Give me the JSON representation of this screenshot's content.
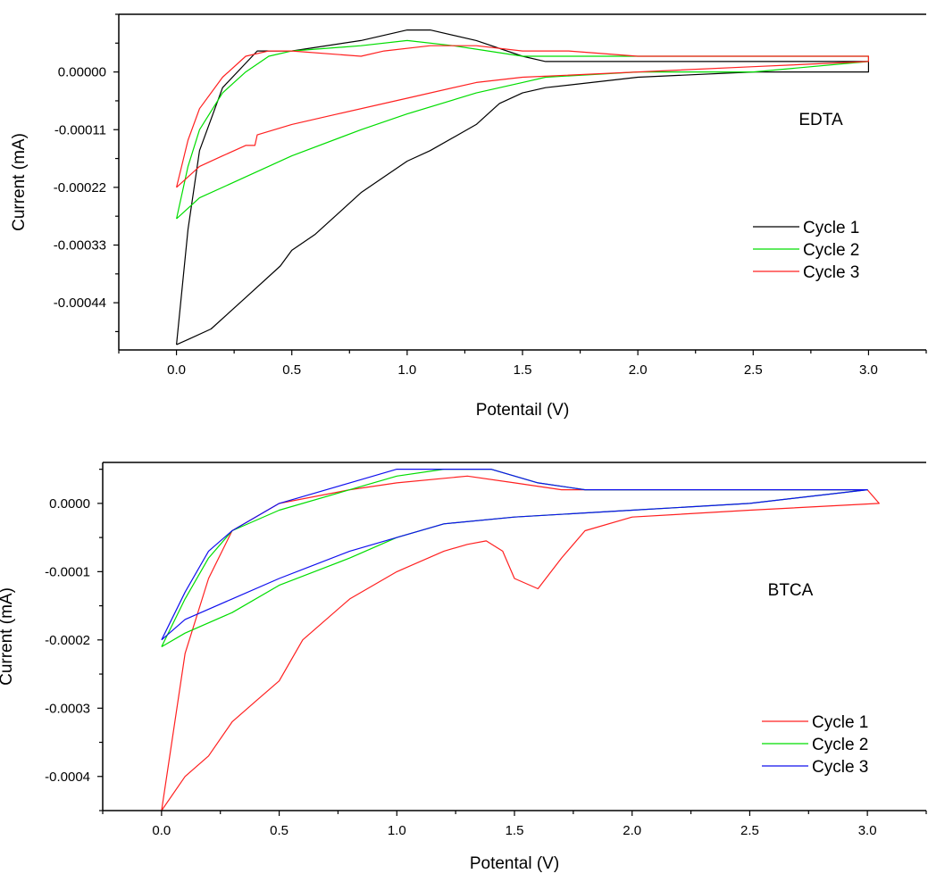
{
  "chart_data": [
    {
      "type": "line",
      "title": "",
      "annotation": "EDTA",
      "xlabel": "Potentail (V)",
      "ylabel": "Current (mA)",
      "xlim": [
        -0.25,
        3.25
      ],
      "ylim": [
        -0.00053,
        0.00011
      ],
      "xticks": [
        0.0,
        0.5,
        1.0,
        1.5,
        2.0,
        2.5,
        3.0
      ],
      "xtick_labels": [
        "0.0",
        "0.5",
        "1.0",
        "1.5",
        "2.0",
        "2.5",
        "3.0"
      ],
      "yticks": [
        0.0,
        -0.00011,
        -0.00022,
        -0.00033,
        -0.00044
      ],
      "ytick_labels": [
        "0.00000",
        "-0.00011",
        "-0.00022",
        "-0.00033",
        "-0.00044"
      ],
      "legend_position": "lower-right",
      "series": [
        {
          "name": "Cycle 1",
          "color": "#000000",
          "points": [
            [
              0.0,
              -0.00052
            ],
            [
              0.05,
              -0.0003
            ],
            [
              0.1,
              -0.00015
            ],
            [
              0.2,
              -3e-05
            ],
            [
              0.35,
              4e-05
            ],
            [
              0.5,
              4e-05
            ],
            [
              0.8,
              6e-05
            ],
            [
              1.0,
              8e-05
            ],
            [
              1.1,
              8e-05
            ],
            [
              1.3,
              6e-05
            ],
            [
              1.5,
              3e-05
            ],
            [
              1.6,
              2e-05
            ],
            [
              2.0,
              2e-05
            ],
            [
              2.5,
              2e-05
            ],
            [
              3.0,
              2e-05
            ],
            [
              3.0,
              0.0
            ],
            [
              2.5,
              0.0
            ],
            [
              2.0,
              -1e-05
            ],
            [
              1.6,
              -3e-05
            ],
            [
              1.5,
              -4e-05
            ],
            [
              1.4,
              -6e-05
            ],
            [
              1.3,
              -0.0001
            ],
            [
              1.1,
              -0.00015
            ],
            [
              1.0,
              -0.00017
            ],
            [
              0.9,
              -0.0002
            ],
            [
              0.8,
              -0.00023
            ],
            [
              0.7,
              -0.00027
            ],
            [
              0.6,
              -0.00031
            ],
            [
              0.5,
              -0.00034
            ],
            [
              0.45,
              -0.00037
            ],
            [
              0.3,
              -0.00043
            ],
            [
              0.15,
              -0.00049
            ],
            [
              0.05,
              -0.00051
            ],
            [
              0.0,
              -0.00052
            ]
          ]
        },
        {
          "name": "Cycle 2",
          "color": "#00dd00",
          "points": [
            [
              0.0,
              -0.00028
            ],
            [
              0.05,
              -0.00018
            ],
            [
              0.1,
              -0.00011
            ],
            [
              0.2,
              -4e-05
            ],
            [
              0.3,
              0.0
            ],
            [
              0.4,
              3e-05
            ],
            [
              0.5,
              4e-05
            ],
            [
              0.8,
              5e-05
            ],
            [
              1.0,
              6e-05
            ],
            [
              1.2,
              5e-05
            ],
            [
              1.5,
              3e-05
            ],
            [
              2.0,
              3e-05
            ],
            [
              2.5,
              3e-05
            ],
            [
              3.0,
              3e-05
            ],
            [
              3.0,
              2e-05
            ],
            [
              2.5,
              0.0
            ],
            [
              2.0,
              0.0
            ],
            [
              1.6,
              -1e-05
            ],
            [
              1.5,
              -2e-05
            ],
            [
              1.3,
              -4e-05
            ],
            [
              1.0,
              -8e-05
            ],
            [
              0.8,
              -0.00011
            ],
            [
              0.5,
              -0.00016
            ],
            [
              0.3,
              -0.0002
            ],
            [
              0.1,
              -0.00024
            ],
            [
              0.0,
              -0.00028
            ]
          ]
        },
        {
          "name": "Cycle 3",
          "color": "#ff2020",
          "points": [
            [
              0.0,
              -0.00022
            ],
            [
              0.05,
              -0.00013
            ],
            [
              0.1,
              -7e-05
            ],
            [
              0.2,
              -1e-05
            ],
            [
              0.3,
              3e-05
            ],
            [
              0.4,
              4e-05
            ],
            [
              0.5,
              4e-05
            ],
            [
              0.8,
              3e-05
            ],
            [
              0.9,
              4e-05
            ],
            [
              1.1,
              5e-05
            ],
            [
              1.3,
              5e-05
            ],
            [
              1.5,
              4e-05
            ],
            [
              1.7,
              4e-05
            ],
            [
              2.0,
              3e-05
            ],
            [
              2.5,
              3e-05
            ],
            [
              3.0,
              3e-05
            ],
            [
              3.0,
              2e-05
            ],
            [
              2.5,
              1e-05
            ],
            [
              2.0,
              0.0
            ],
            [
              1.5,
              -1e-05
            ],
            [
              1.3,
              -2e-05
            ],
            [
              1.0,
              -5e-05
            ],
            [
              0.7,
              -8e-05
            ],
            [
              0.5,
              -0.0001
            ],
            [
              0.35,
              -0.00012
            ],
            [
              0.34,
              -0.00014
            ],
            [
              0.3,
              -0.00014
            ],
            [
              0.2,
              -0.00016
            ],
            [
              0.1,
              -0.00018
            ],
            [
              0.0,
              -0.00022
            ]
          ]
        }
      ]
    },
    {
      "type": "line",
      "title": "",
      "annotation": "BTCA",
      "xlabel": "Potental (V)",
      "ylabel": "Current (mA)",
      "xlim": [
        -0.25,
        3.25
      ],
      "ylim": [
        -0.00045,
        6e-05
      ],
      "xticks": [
        0.0,
        0.5,
        1.0,
        1.5,
        2.0,
        2.5,
        3.0
      ],
      "xtick_labels": [
        "0.0",
        "0.5",
        "1.0",
        "1.5",
        "2.0",
        "2.5",
        "3.0"
      ],
      "yticks": [
        0.0,
        -0.0001,
        -0.0002,
        -0.0003,
        -0.0004
      ],
      "ytick_labels": [
        "0.0000",
        "-0.0001",
        "-0.0002",
        "-0.0003",
        "-0.0004"
      ],
      "legend_position": "lower-right",
      "series": [
        {
          "name": "Cycle 1",
          "color": "#ff2020",
          "points": [
            [
              0.0,
              -0.00045
            ],
            [
              0.1,
              -0.00022
            ],
            [
              0.2,
              -0.00011
            ],
            [
              0.3,
              -4e-05
            ],
            [
              0.5,
              0.0
            ],
            [
              0.8,
              2e-05
            ],
            [
              1.0,
              3e-05
            ],
            [
              1.3,
              4e-05
            ],
            [
              1.5,
              3e-05
            ],
            [
              1.7,
              2e-05
            ],
            [
              2.0,
              2e-05
            ],
            [
              2.5,
              2e-05
            ],
            [
              3.0,
              2e-05
            ],
            [
              3.05,
              0.0
            ],
            [
              2.5,
              -1e-05
            ],
            [
              2.0,
              -2e-05
            ],
            [
              1.8,
              -4e-05
            ],
            [
              1.7,
              -8e-05
            ],
            [
              1.6,
              -0.000125
            ],
            [
              1.5,
              -0.00011
            ],
            [
              1.45,
              -7e-05
            ],
            [
              1.38,
              -5.5e-05
            ],
            [
              1.3,
              -6e-05
            ],
            [
              1.2,
              -7e-05
            ],
            [
              1.0,
              -0.0001
            ],
            [
              0.8,
              -0.00014
            ],
            [
              0.6,
              -0.0002
            ],
            [
              0.5,
              -0.00026
            ],
            [
              0.4,
              -0.00029
            ],
            [
              0.3,
              -0.00032
            ],
            [
              0.2,
              -0.00037
            ],
            [
              0.1,
              -0.0004
            ],
            [
              0.0,
              -0.00045
            ]
          ]
        },
        {
          "name": "Cycle 2",
          "color": "#00dd00",
          "points": [
            [
              0.0,
              -0.00021
            ],
            [
              0.1,
              -0.00014
            ],
            [
              0.2,
              -8e-05
            ],
            [
              0.3,
              -4e-05
            ],
            [
              0.5,
              -1e-05
            ],
            [
              0.8,
              2e-05
            ],
            [
              1.0,
              4e-05
            ],
            [
              1.2,
              5e-05
            ],
            [
              1.4,
              5e-05
            ],
            [
              1.6,
              3e-05
            ],
            [
              1.8,
              2e-05
            ],
            [
              2.0,
              2e-05
            ],
            [
              2.5,
              2e-05
            ],
            [
              3.0,
              2e-05
            ],
            [
              3.0,
              2e-05
            ],
            [
              2.5,
              0.0
            ],
            [
              2.0,
              -1e-05
            ],
            [
              1.5,
              -2e-05
            ],
            [
              1.2,
              -3e-05
            ],
            [
              1.0,
              -5e-05
            ],
            [
              0.8,
              -8e-05
            ],
            [
              0.5,
              -0.00012
            ],
            [
              0.3,
              -0.00016
            ],
            [
              0.1,
              -0.00019
            ],
            [
              0.0,
              -0.00021
            ]
          ]
        },
        {
          "name": "Cycle 3",
          "color": "#1010ee",
          "points": [
            [
              0.0,
              -0.0002
            ],
            [
              0.1,
              -0.00013
            ],
            [
              0.2,
              -7e-05
            ],
            [
              0.3,
              -4e-05
            ],
            [
              0.5,
              0.0
            ],
            [
              0.8,
              3e-05
            ],
            [
              1.0,
              5e-05
            ],
            [
              1.2,
              5e-05
            ],
            [
              1.4,
              5e-05
            ],
            [
              1.6,
              3e-05
            ],
            [
              1.8,
              2e-05
            ],
            [
              2.0,
              2e-05
            ],
            [
              2.5,
              2e-05
            ],
            [
              3.0,
              2e-05
            ],
            [
              3.0,
              2e-05
            ],
            [
              2.5,
              0.0
            ],
            [
              2.0,
              -1e-05
            ],
            [
              1.5,
              -2e-05
            ],
            [
              1.2,
              -3e-05
            ],
            [
              1.0,
              -5e-05
            ],
            [
              0.8,
              -7e-05
            ],
            [
              0.5,
              -0.00011
            ],
            [
              0.3,
              -0.00014
            ],
            [
              0.1,
              -0.00017
            ],
            [
              0.0,
              -0.0002
            ]
          ]
        }
      ]
    }
  ]
}
